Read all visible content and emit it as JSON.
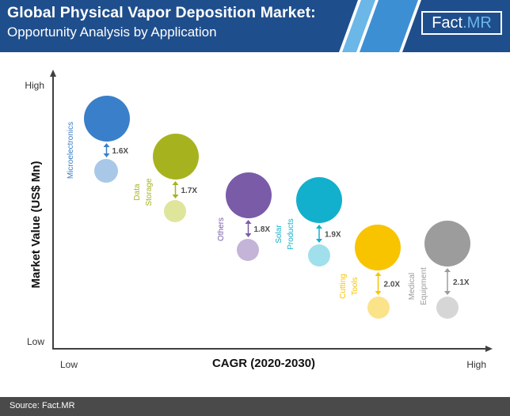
{
  "header": {
    "title": "Global Physical Vapor Deposition Market:",
    "subtitle": "Opportunity Analysis by Application",
    "logo_part1": "Fact",
    "logo_part2": ".MR",
    "colors": {
      "band": "#1f4e8c",
      "stripe_light": "#6ab7e8",
      "stripe_mid": "#3d8fd4"
    }
  },
  "footer": {
    "source": "Source: Fact.MR"
  },
  "chart_data": {
    "type": "scatter",
    "title": "",
    "xlabel": "CAGR (2020-2030)",
    "ylabel": "Market Value (US$ Mn)",
    "x_ticks": [
      "Low",
      "High"
    ],
    "y_ticks": [
      "Low",
      "High"
    ],
    "grid": false,
    "series": [
      {
        "label": "Microelectronics",
        "multiplier": "1.6X",
        "color": "#3a7fc9",
        "light_color": "#a9c8e8"
      },
      {
        "label": "Data Storage",
        "multiplier": "1.7X",
        "color": "#a7b31e",
        "light_color": "#dfe59b"
      },
      {
        "label": "Others",
        "multiplier": "1.8X",
        "color": "#7a5ba8",
        "light_color": "#c4b4d8"
      },
      {
        "label": "Solar Products",
        "multiplier": "1.9X",
        "color": "#12b0cc",
        "light_color": "#9fe0ec"
      },
      {
        "label": "Cutting Tools",
        "multiplier": "2.0X",
        "color": "#f8c400",
        "light_color": "#fbe38a"
      },
      {
        "label": "Medical Equipment",
        "multiplier": "2.1X",
        "color": "#9c9c9c",
        "light_color": "#d6d6d6"
      }
    ]
  }
}
